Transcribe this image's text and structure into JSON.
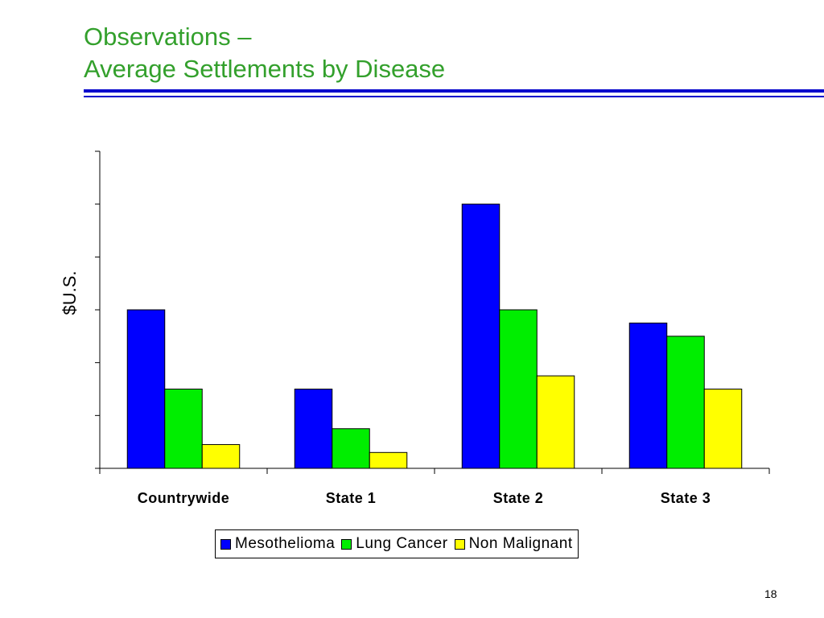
{
  "slide": {
    "title_line1": "Observations –",
    "title_line2": "Average Settlements by Disease",
    "page_number": "18"
  },
  "colors": {
    "title": "#33a02c",
    "rule": "#0000cc"
  },
  "chart_data": {
    "type": "bar",
    "title": "Average Settlements by Disease",
    "xlabel": "",
    "ylabel": "$U.S.",
    "ylim": [
      0,
      6
    ],
    "ytick_count": 6,
    "show_ytick_labels": false,
    "grid": false,
    "legend_position": "bottom",
    "categories": [
      "Countrywide",
      "State 1",
      "State 2",
      "State 3"
    ],
    "series": [
      {
        "name": "Mesothelioma",
        "color": "#0000ff",
        "values": [
          3.0,
          1.5,
          5.0,
          2.75
        ]
      },
      {
        "name": "Lung Cancer",
        "color": "#00ee00",
        "values": [
          1.5,
          0.75,
          3.0,
          2.5
        ]
      },
      {
        "name": "Non Malignant",
        "color": "#ffff00",
        "values": [
          0.45,
          0.3,
          1.75,
          1.5
        ]
      }
    ]
  }
}
